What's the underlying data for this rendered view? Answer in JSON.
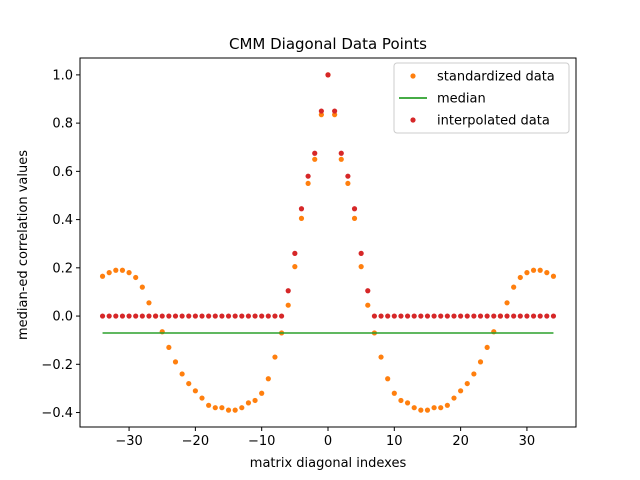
{
  "chart_data": {
    "type": "scatter",
    "title": "CMM Diagonal Data Points",
    "xlabel": "matrix diagonal indexes",
    "ylabel": "median-ed correlation values",
    "xlim": [
      -37.4,
      37.4
    ],
    "ylim": [
      -0.46,
      1.07
    ],
    "xticks": [
      -30,
      -20,
      -10,
      0,
      10,
      20,
      30
    ],
    "xtick_labels": [
      "−30",
      "−20",
      "−10",
      "0",
      "10",
      "20",
      "30"
    ],
    "yticks": [
      -0.4,
      -0.2,
      0.0,
      0.2,
      0.4,
      0.6,
      0.8,
      1.0
    ],
    "ytick_labels": [
      "−0.4",
      "−0.2",
      "0.0",
      "0.2",
      "0.4",
      "0.6",
      "0.8",
      "1.0"
    ],
    "grid": false,
    "legend_position": "top-right",
    "series": [
      {
        "name": "standardized data",
        "kind": "scatter",
        "color": "#ff7f0e",
        "x": [
          -34,
          -33,
          -32,
          -31,
          -30,
          -29,
          -28,
          -27,
          -26,
          -25,
          -24,
          -23,
          -22,
          -21,
          -20,
          -19,
          -18,
          -17,
          -16,
          -15,
          -14,
          -13,
          -12,
          -11,
          -10,
          -9,
          -8,
          -7,
          -6,
          -5,
          -4,
          -3,
          -2,
          -1,
          0,
          1,
          2,
          3,
          4,
          5,
          6,
          7,
          8,
          9,
          10,
          11,
          12,
          13,
          14,
          15,
          16,
          17,
          18,
          19,
          20,
          21,
          22,
          23,
          24,
          25,
          26,
          27,
          28,
          29,
          30,
          31,
          32,
          33,
          34
        ],
        "y": [
          0.165,
          0.18,
          0.19,
          0.19,
          0.18,
          0.16,
          0.12,
          0.055,
          0.0,
          -0.065,
          -0.13,
          -0.19,
          -0.24,
          -0.28,
          -0.31,
          -0.34,
          -0.37,
          -0.38,
          -0.38,
          -0.39,
          -0.39,
          -0.38,
          -0.36,
          -0.35,
          -0.32,
          -0.26,
          -0.17,
          -0.07,
          0.045,
          0.205,
          0.405,
          0.55,
          0.65,
          0.835,
          1.0,
          0.835,
          0.65,
          0.55,
          0.405,
          0.205,
          0.045,
          -0.07,
          -0.17,
          -0.26,
          -0.32,
          -0.35,
          -0.36,
          -0.38,
          -0.39,
          -0.39,
          -0.38,
          -0.38,
          -0.37,
          -0.34,
          -0.31,
          -0.28,
          -0.24,
          -0.19,
          -0.13,
          -0.065,
          0.0,
          0.055,
          0.12,
          0.16,
          0.18,
          0.19,
          0.19,
          0.18,
          0.165
        ]
      },
      {
        "name": "median",
        "kind": "line",
        "color": "#2ca02c",
        "x": [
          -34,
          34
        ],
        "y": [
          -0.07,
          -0.07
        ]
      },
      {
        "name": "interpolated data",
        "kind": "scatter",
        "color": "#d62728",
        "x": [
          -34,
          -33,
          -32,
          -31,
          -30,
          -29,
          -28,
          -27,
          -26,
          -25,
          -24,
          -23,
          -22,
          -21,
          -20,
          -19,
          -18,
          -17,
          -16,
          -15,
          -14,
          -13,
          -12,
          -11,
          -10,
          -9,
          -8,
          -7,
          -6,
          -5,
          -4,
          -3,
          -2,
          -1,
          0,
          1,
          2,
          3,
          4,
          5,
          6,
          7,
          8,
          9,
          10,
          11,
          12,
          13,
          14,
          15,
          16,
          17,
          18,
          19,
          20,
          21,
          22,
          23,
          24,
          25,
          26,
          27,
          28,
          29,
          30,
          31,
          32,
          33,
          34
        ],
        "y": [
          0,
          0,
          0,
          0,
          0,
          0,
          0,
          0,
          0,
          0,
          0,
          0,
          0,
          0,
          0,
          0,
          0,
          0,
          0,
          0,
          0,
          0,
          0,
          0,
          0,
          0,
          0,
          0,
          0.105,
          0.26,
          0.445,
          0.58,
          0.675,
          0.85,
          1.0,
          0.85,
          0.675,
          0.58,
          0.445,
          0.26,
          0.105,
          0,
          0,
          0,
          0,
          0,
          0,
          0,
          0,
          0,
          0,
          0,
          0,
          0,
          0,
          0,
          0,
          0,
          0,
          0,
          0,
          0,
          0,
          0,
          0,
          0,
          0,
          0,
          0
        ]
      }
    ]
  }
}
